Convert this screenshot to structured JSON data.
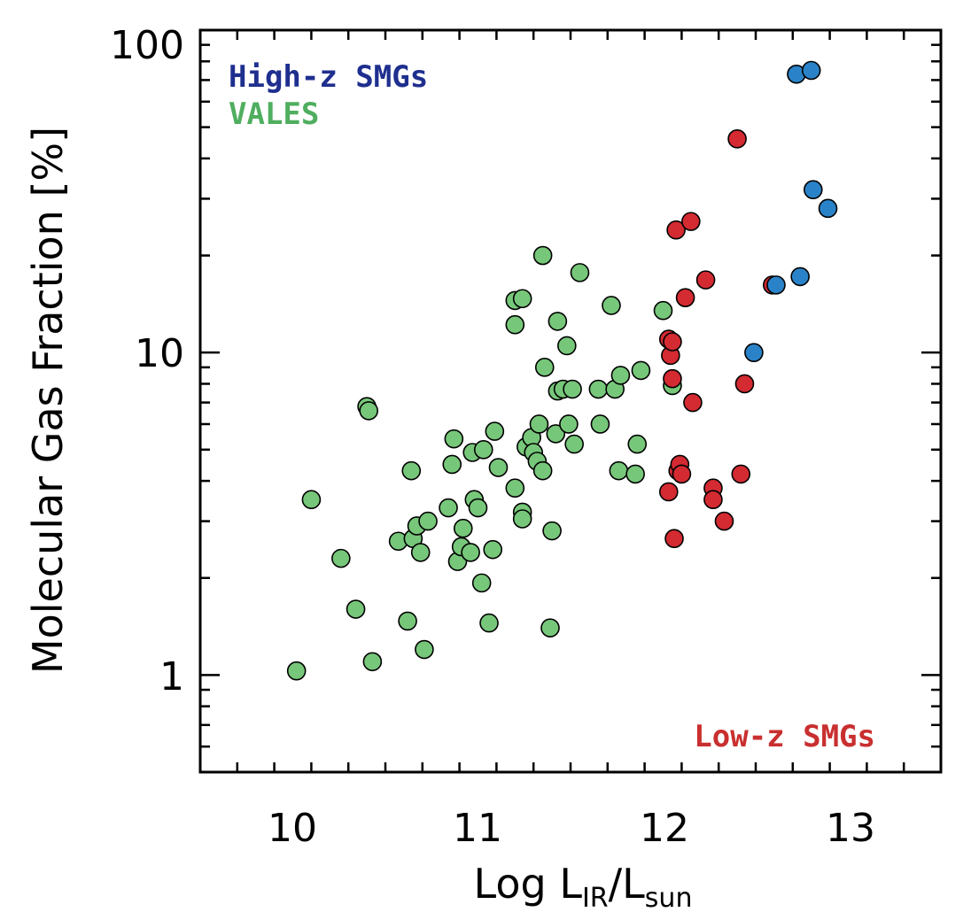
{
  "chart_data": {
    "type": "scatter",
    "title": "",
    "xlabel": {
      "main": "Log L",
      "sub1": "IR",
      "mid": "/L",
      "sub2": "sun"
    },
    "ylabel": "Molecular Gas Fraction [%]",
    "xlim": [
      9.5,
      13.5
    ],
    "ylim": [
      0.5,
      100
    ],
    "yscale": "log",
    "x_ticks": [
      10,
      11,
      12,
      13
    ],
    "x_tick_labels": [
      "10",
      "11",
      "12",
      "13"
    ],
    "y_ticks": [
      1,
      10,
      100
    ],
    "y_tick_labels": [
      "1",
      "10",
      "100"
    ],
    "legend": [
      {
        "label": "High-z SMGs",
        "color": "#1f2f8f",
        "position": "top-left"
      },
      {
        "label": "VALES",
        "color": "#4fae5f",
        "position": "top-left"
      },
      {
        "label": "Low-z SMGs",
        "color": "#c92f2f",
        "position": "bottom-right"
      }
    ],
    "series": [
      {
        "name": "VALES",
        "color": "#77c77a",
        "points": [
          [
            10.02,
            1.03
          ],
          [
            10.1,
            3.5
          ],
          [
            10.26,
            2.3
          ],
          [
            10.34,
            1.6
          ],
          [
            10.4,
            6.8
          ],
          [
            10.41,
            6.6
          ],
          [
            10.43,
            1.1
          ],
          [
            10.57,
            2.6
          ],
          [
            10.62,
            1.47
          ],
          [
            10.64,
            4.3
          ],
          [
            10.65,
            2.65
          ],
          [
            10.67,
            2.9
          ],
          [
            10.69,
            2.4
          ],
          [
            10.71,
            1.2
          ],
          [
            10.73,
            3.0
          ],
          [
            10.84,
            3.3
          ],
          [
            10.86,
            4.5
          ],
          [
            10.87,
            5.4
          ],
          [
            10.89,
            2.25
          ],
          [
            10.91,
            2.5
          ],
          [
            10.92,
            2.85
          ],
          [
            10.96,
            2.4
          ],
          [
            10.97,
            4.9
          ],
          [
            10.98,
            3.5
          ],
          [
            11.0,
            3.3
          ],
          [
            11.02,
            1.93
          ],
          [
            11.03,
            5.0
          ],
          [
            11.06,
            1.45
          ],
          [
            11.08,
            2.45
          ],
          [
            11.09,
            5.7
          ],
          [
            11.11,
            4.4
          ],
          [
            11.2,
            3.8
          ],
          [
            11.2,
            12.2
          ],
          [
            11.2,
            14.5
          ],
          [
            11.24,
            14.7
          ],
          [
            11.24,
            3.2
          ],
          [
            11.24,
            3.05
          ],
          [
            11.26,
            5.1
          ],
          [
            11.29,
            5.45
          ],
          [
            11.3,
            4.9
          ],
          [
            11.32,
            4.6
          ],
          [
            11.33,
            6.0
          ],
          [
            11.35,
            4.3
          ],
          [
            11.35,
            20.0
          ],
          [
            11.36,
            9.0
          ],
          [
            11.39,
            1.4
          ],
          [
            11.4,
            2.8
          ],
          [
            11.42,
            5.6
          ],
          [
            11.43,
            12.5
          ],
          [
            11.43,
            7.6
          ],
          [
            11.46,
            7.7
          ],
          [
            11.48,
            10.5
          ],
          [
            11.49,
            6.0
          ],
          [
            11.51,
            7.7
          ],
          [
            11.52,
            5.2
          ],
          [
            11.55,
            17.7
          ],
          [
            11.65,
            7.7
          ],
          [
            11.66,
            6.0
          ],
          [
            11.72,
            14.0
          ],
          [
            11.74,
            7.7
          ],
          [
            11.76,
            4.3
          ],
          [
            11.77,
            8.5
          ],
          [
            11.85,
            4.2
          ],
          [
            11.86,
            5.2
          ],
          [
            11.88,
            8.8
          ],
          [
            12.0,
            13.5
          ],
          [
            12.05,
            7.9
          ]
        ]
      },
      {
        "name": "Low-z SMGs",
        "color": "#d42a32",
        "points": [
          [
            12.03,
            3.7
          ],
          [
            12.03,
            11.0
          ],
          [
            12.04,
            9.8
          ],
          [
            12.05,
            10.8
          ],
          [
            12.05,
            8.3
          ],
          [
            12.06,
            2.65
          ],
          [
            12.07,
            24.0
          ],
          [
            12.08,
            4.3
          ],
          [
            12.09,
            4.5
          ],
          [
            12.1,
            4.2
          ],
          [
            12.12,
            14.8
          ],
          [
            12.15,
            25.5
          ],
          [
            12.16,
            7.0
          ],
          [
            12.23,
            16.8
          ],
          [
            12.27,
            3.8
          ],
          [
            12.27,
            3.5
          ],
          [
            12.33,
            3.0
          ],
          [
            12.4,
            46.0
          ],
          [
            12.42,
            4.2
          ],
          [
            12.44,
            8.0
          ],
          [
            12.59,
            16.2
          ]
        ]
      },
      {
        "name": "High-z SMGs",
        "color": "#2a83c8",
        "points": [
          [
            12.49,
            10.0
          ],
          [
            12.61,
            16.2
          ],
          [
            12.72,
            73.0
          ],
          [
            12.74,
            17.2
          ],
          [
            12.8,
            75.0
          ],
          [
            12.81,
            32.0
          ],
          [
            12.89,
            28.0
          ]
        ]
      }
    ]
  }
}
